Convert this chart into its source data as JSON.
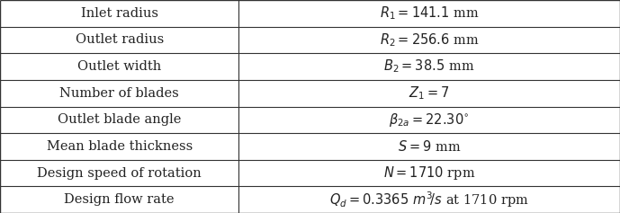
{
  "rows": [
    [
      "Inlet radius",
      "$R_1 = 141.1$ mm"
    ],
    [
      "Outlet radius",
      "$R_2 = 256.6$ mm"
    ],
    [
      "Outlet width",
      "$B_2 = 38.5$ mm"
    ],
    [
      "Number of blades",
      "$Z_1 = 7$"
    ],
    [
      "Outlet blade angle",
      "$\\beta_{2a} = 22.30^{\\circ}$"
    ],
    [
      "Mean blade thickness",
      "$S = 9$ mm"
    ],
    [
      "Design speed of rotation",
      "$N = 1710$ rpm"
    ],
    [
      "Design flow rate",
      "$Q_d = 0.3365\\ m^3\\!/s$ at 1710 rpm"
    ]
  ],
  "col_split": 0.385,
  "line_color": "#333333",
  "bg_color": "#ffffff",
  "text_color": "#222222",
  "font_size": 10.5,
  "lw_inner": 0.8,
  "lw_outer": 1.0
}
